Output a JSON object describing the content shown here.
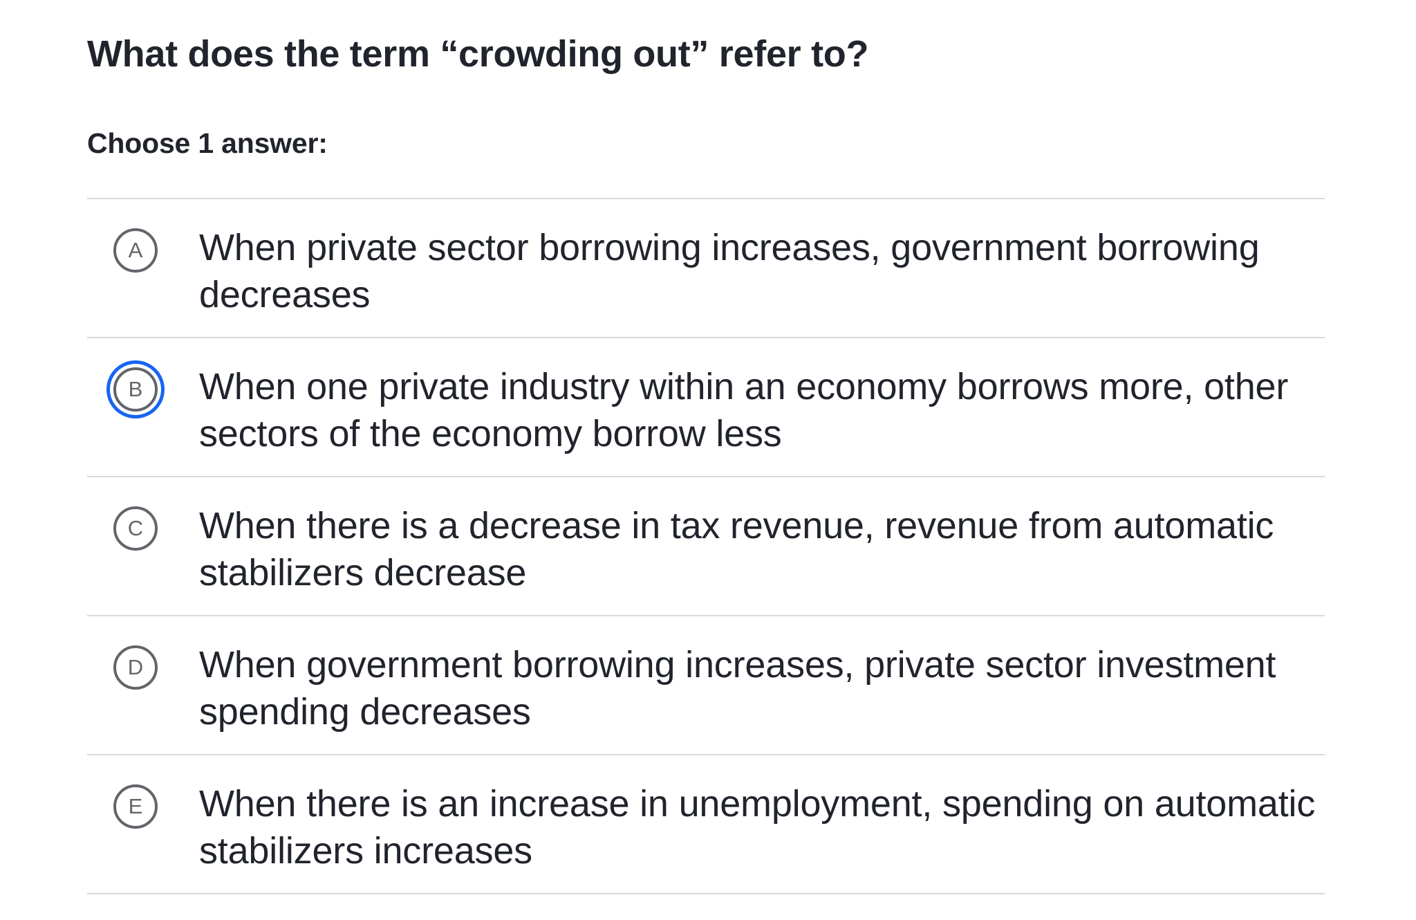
{
  "question": {
    "title": "What does the term “crowding out” refer to?",
    "instruction": "Choose 1 answer:"
  },
  "choices": [
    {
      "letter": "A",
      "text": "When private sector borrowing increases, government borrowing decreases",
      "focused": false
    },
    {
      "letter": "B",
      "text": "When one private industry within an economy borrows more, other sectors of the economy borrow less",
      "focused": true
    },
    {
      "letter": "C",
      "text": "When there is a decrease in tax revenue, revenue from automatic stabilizers decrease",
      "focused": false
    },
    {
      "letter": "D",
      "text": "When government borrowing increases, private sector investment spending decreases",
      "focused": false
    },
    {
      "letter": "E",
      "text": "When there is an increase in unemployment, spending on automatic stabilizers increases",
      "focused": false
    }
  ],
  "colors": {
    "text": "#21242c",
    "circle": "#626569",
    "divider": "#d6d8da",
    "focus_ring": "#1865f2"
  }
}
